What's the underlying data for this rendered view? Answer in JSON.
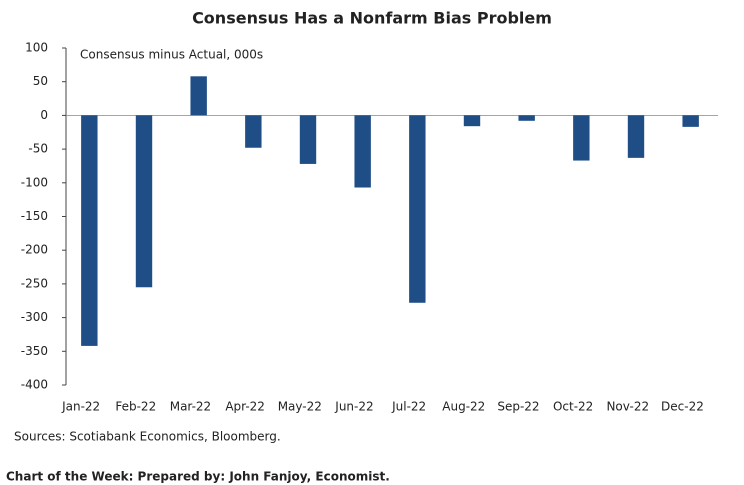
{
  "chart_data": {
    "type": "bar",
    "title": "Consensus Has a Nonfarm Bias Problem",
    "subtitle": "Consensus minus Actual, 000s",
    "source": "Sources: Scotiabank Economics, Bloomberg.",
    "categories": [
      "Jan-22",
      "Feb-22",
      "Mar-22",
      "Apr-22",
      "May-22",
      "Jun-22",
      "Jul-22",
      "Aug-22",
      "Sep-22",
      "Oct-22",
      "Nov-22",
      "Dec-22"
    ],
    "values": [
      -342,
      -255,
      58,
      -48,
      -72,
      -107,
      -278,
      -16,
      -8,
      -67,
      -63,
      -17
    ],
    "color": "#1f4e87",
    "ylim": [
      -400,
      100
    ],
    "yticks": [
      -400,
      -350,
      -300,
      -250,
      -200,
      -150,
      -100,
      -50,
      0,
      50,
      100
    ],
    "grid": false
  },
  "footer": "Chart of the Week:  Prepared by: John Fanjoy, Economist."
}
